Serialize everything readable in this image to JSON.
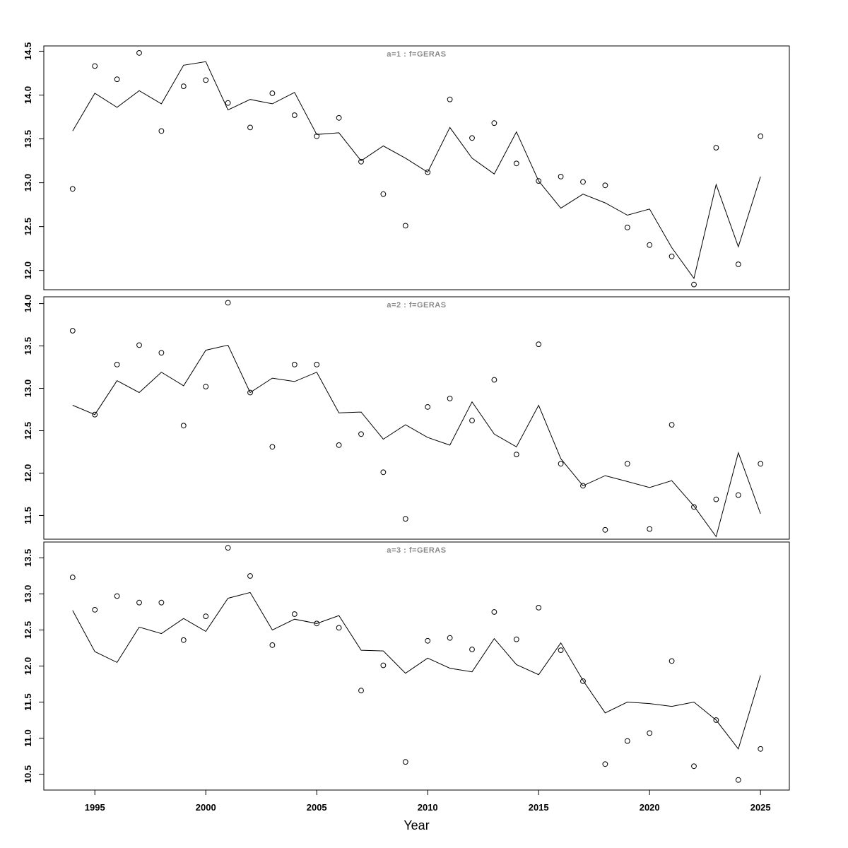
{
  "figure": {
    "xlabel": "Year",
    "background": "#ffffff",
    "line_color": "#000000",
    "point_color": "#000000",
    "title_color": "#8a8a8a"
  },
  "chart_data": [
    {
      "type": "line",
      "title": "a=1 : f=GERAS",
      "xlabel": "",
      "ylabel": "",
      "x": [
        1994,
        1995,
        1996,
        1997,
        1998,
        1999,
        2000,
        2001,
        2002,
        2003,
        2004,
        2005,
        2006,
        2007,
        2008,
        2009,
        2010,
        2011,
        2012,
        2013,
        2014,
        2015,
        2016,
        2017,
        2018,
        2019,
        2020,
        2021,
        2022,
        2023,
        2024,
        2025
      ],
      "series": [
        {
          "name": "observed",
          "style": "points",
          "values": [
            12.93,
            14.33,
            14.18,
            14.48,
            13.59,
            14.1,
            14.17,
            13.91,
            13.63,
            14.02,
            13.77,
            13.53,
            13.74,
            13.24,
            12.87,
            12.51,
            13.12,
            13.95,
            13.51,
            13.68,
            13.22,
            13.02,
            13.07,
            13.01,
            12.97,
            12.49,
            12.29,
            12.16,
            11.84,
            13.4,
            12.07,
            13.53
          ]
        },
        {
          "name": "fitted",
          "style": "line",
          "values": [
            13.59,
            14.02,
            13.86,
            14.05,
            13.9,
            14.34,
            14.38,
            13.83,
            13.95,
            13.9,
            14.03,
            13.55,
            13.57,
            13.25,
            13.42,
            13.28,
            13.12,
            13.63,
            13.28,
            13.1,
            13.58,
            13.02,
            12.71,
            12.87,
            12.77,
            12.63,
            12.7,
            12.26,
            11.91,
            12.98,
            12.27,
            13.07
          ]
        }
      ],
      "xlim": [
        1992.7,
        2026.3
      ],
      "ylim": [
        11.78,
        14.56
      ],
      "xticks": [
        1995,
        2000,
        2005,
        2010,
        2015,
        2020,
        2025
      ],
      "yticks": [
        12.0,
        12.5,
        13.0,
        13.5,
        14.0,
        14.5
      ],
      "grid": false,
      "legend": "none"
    },
    {
      "type": "line",
      "title": "a=2 : f=GERAS",
      "xlabel": "",
      "ylabel": "",
      "x": [
        1994,
        1995,
        1996,
        1997,
        1998,
        1999,
        2000,
        2001,
        2002,
        2003,
        2004,
        2005,
        2006,
        2007,
        2008,
        2009,
        2010,
        2011,
        2012,
        2013,
        2014,
        2015,
        2016,
        2017,
        2018,
        2019,
        2020,
        2021,
        2022,
        2023,
        2024,
        2025
      ],
      "series": [
        {
          "name": "observed",
          "style": "points",
          "values": [
            13.68,
            12.69,
            13.28,
            13.51,
            13.42,
            12.56,
            13.02,
            14.01,
            12.95,
            12.31,
            13.28,
            13.28,
            12.33,
            12.46,
            12.01,
            11.46,
            12.78,
            12.88,
            12.62,
            13.1,
            12.22,
            13.52,
            12.11,
            11.85,
            11.33,
            12.11,
            11.34,
            12.57,
            11.6,
            11.69,
            11.74,
            12.11
          ]
        },
        {
          "name": "fitted",
          "style": "line",
          "values": [
            12.8,
            12.69,
            13.09,
            12.95,
            13.19,
            13.03,
            13.45,
            13.51,
            12.95,
            13.12,
            13.08,
            13.19,
            12.71,
            12.72,
            12.4,
            12.57,
            12.42,
            12.33,
            12.84,
            12.46,
            12.31,
            12.8,
            12.17,
            11.85,
            11.97,
            11.9,
            11.83,
            11.91,
            11.61,
            11.25,
            12.24,
            11.52
          ]
        }
      ],
      "xlim": [
        1992.7,
        2026.3
      ],
      "ylim": [
        11.22,
        14.08
      ],
      "xticks": [
        1995,
        2000,
        2005,
        2010,
        2015,
        2020,
        2025
      ],
      "yticks": [
        11.5,
        12.0,
        12.5,
        13.0,
        13.5,
        14.0
      ],
      "grid": false,
      "legend": "none"
    },
    {
      "type": "line",
      "title": "a=3 : f=GERAS",
      "xlabel": "",
      "ylabel": "",
      "x": [
        1994,
        1995,
        1996,
        1997,
        1998,
        1999,
        2000,
        2001,
        2002,
        2003,
        2004,
        2005,
        2006,
        2007,
        2008,
        2009,
        2010,
        2011,
        2012,
        2013,
        2014,
        2015,
        2016,
        2017,
        2018,
        2019,
        2020,
        2021,
        2022,
        2023,
        2024,
        2025
      ],
      "series": [
        {
          "name": "observed",
          "style": "points",
          "values": [
            13.23,
            12.78,
            12.97,
            12.88,
            12.88,
            12.36,
            12.69,
            13.64,
            13.25,
            12.29,
            12.72,
            12.59,
            12.53,
            11.66,
            12.01,
            10.67,
            12.35,
            12.39,
            12.23,
            12.75,
            12.37,
            12.81,
            12.22,
            11.79,
            10.64,
            10.96,
            11.07,
            12.07,
            10.61,
            11.25,
            10.42,
            10.85
          ]
        },
        {
          "name": "fitted",
          "style": "line",
          "values": [
            12.77,
            12.2,
            12.05,
            12.54,
            12.45,
            12.66,
            12.48,
            12.94,
            13.02,
            12.5,
            12.65,
            12.59,
            12.7,
            12.22,
            12.21,
            11.9,
            12.11,
            11.97,
            11.92,
            12.38,
            12.02,
            11.88,
            12.32,
            11.8,
            11.35,
            11.5,
            11.48,
            11.44,
            11.5,
            11.25,
            10.85,
            11.87
          ]
        }
      ],
      "xlim": [
        1992.7,
        2026.3
      ],
      "ylim": [
        10.28,
        13.72
      ],
      "xticks": [
        1995,
        2000,
        2005,
        2010,
        2015,
        2020,
        2025
      ],
      "yticks": [
        10.5,
        11.0,
        11.5,
        12.0,
        12.5,
        13.0,
        13.5
      ],
      "grid": false,
      "legend": "none"
    }
  ]
}
